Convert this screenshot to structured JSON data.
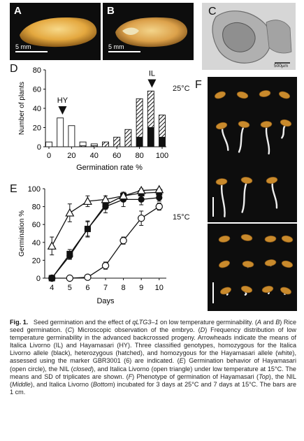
{
  "panels": {
    "a": {
      "label": "A",
      "scale": "5 mm"
    },
    "b": {
      "label": "B",
      "scale": "5 mm"
    },
    "c": {
      "label": "C",
      "scale": "500µm"
    },
    "d": {
      "label": "D"
    },
    "e": {
      "label": "E"
    },
    "f": {
      "label": "F"
    }
  },
  "conditions": {
    "warm": "25°C",
    "cold": "15°C"
  },
  "chart_data": [
    {
      "type": "bar",
      "panel": "D",
      "categories": [
        "0",
        "10",
        "20",
        "30",
        "40",
        "50",
        "60",
        "70",
        "80",
        "90",
        "100"
      ],
      "xticks": [
        "0",
        "20",
        "40",
        "60",
        "80",
        "100"
      ],
      "yticks": [
        "0",
        "20",
        "40",
        "60",
        "80"
      ],
      "xlabel": "Germination rate %",
      "ylabel": "Number of plants",
      "ylim": [
        0,
        80
      ],
      "series": [
        {
          "genotype": "black",
          "values": [
            0,
            0,
            0,
            0,
            0,
            0,
            0,
            0,
            10,
            20,
            10
          ]
        },
        {
          "genotype": "hatched",
          "values": [
            0,
            0,
            0,
            1,
            1,
            5,
            10,
            18,
            40,
            38,
            23
          ]
        },
        {
          "genotype": "white",
          "values": [
            5,
            30,
            22,
            4,
            2,
            0,
            0,
            0,
            0,
            0,
            0
          ]
        }
      ],
      "annotations": [
        {
          "text": "HY",
          "x": 12
        },
        {
          "text": "IL",
          "x": 91
        }
      ]
    },
    {
      "type": "line",
      "panel": "E",
      "x": [
        4,
        5,
        6,
        7,
        8,
        9,
        10
      ],
      "xlabel": "Days",
      "ylabel": "Germination %",
      "ylim": [
        0,
        100
      ],
      "yticks": [
        "0",
        "20",
        "40",
        "60",
        "80",
        "100"
      ],
      "series": [
        {
          "marker": "open-circle",
          "values": [
            0,
            0,
            1,
            14,
            42,
            67,
            80
          ],
          "errors": [
            0,
            0,
            2,
            4,
            4,
            8,
            4
          ]
        },
        {
          "marker": "closed-circle",
          "values": [
            0,
            25,
            55,
            80,
            88,
            88,
            90
          ],
          "errors": [
            1,
            4,
            8,
            7,
            8,
            6,
            4
          ]
        },
        {
          "marker": "closed-square",
          "values": [
            0,
            27,
            55,
            82,
            92,
            95,
            96
          ],
          "errors": [
            1,
            5,
            9,
            5,
            4,
            3,
            2
          ]
        },
        {
          "marker": "open-triangle",
          "values": [
            36,
            73,
            86,
            88,
            92,
            98,
            99
          ],
          "errors": [
            10,
            10,
            6,
            4,
            3,
            2,
            1
          ]
        }
      ]
    }
  ],
  "caption": {
    "fig": "Fig. 1.",
    "p1": "Seed germination and the effect of ",
    "gene": "qLTG3–1",
    "p2": " on low temperature germinability. (",
    "a": "A",
    "and": " and ",
    "b": "B",
    "p3": ") Rice seed germination. (",
    "c": "C",
    "p4": ") Microscopic observation of the embryo. (",
    "d": "D",
    "p5": ") Frequency distribution of low temperature germinability in the advanced backcrossed progeny. Arrowheads indicate the means of Italica Livorno (IL) and Hayamasari (HY). Three classified genotypes, homozygous for the Italica Livorno allele (black), heterozygous (hatched), and homozygous for the Hayamasari allele (white), assessed using the marker GBR3001 (6) are indicated. (",
    "e": "E",
    "p6": ") Germination behavior of Hayamasari (open circle), the NIL (",
    "closed": "closed",
    "p7": "), and Italica Livorno (open triangle) under low temperature at 15°C. The means and SD of triplicates are shown. (",
    "f": "F",
    "p8": ") Phenotype of germination of Hayamasari (",
    "top": "Top",
    "p9": "), the NIL (",
    "middle": "Middle",
    "p10": "), and Italica Livorno (",
    "bottom": "Bottom",
    "p11": ") incubated for 3 days at 25°C and 7 days at 15°C. The bars are 1 cm."
  }
}
